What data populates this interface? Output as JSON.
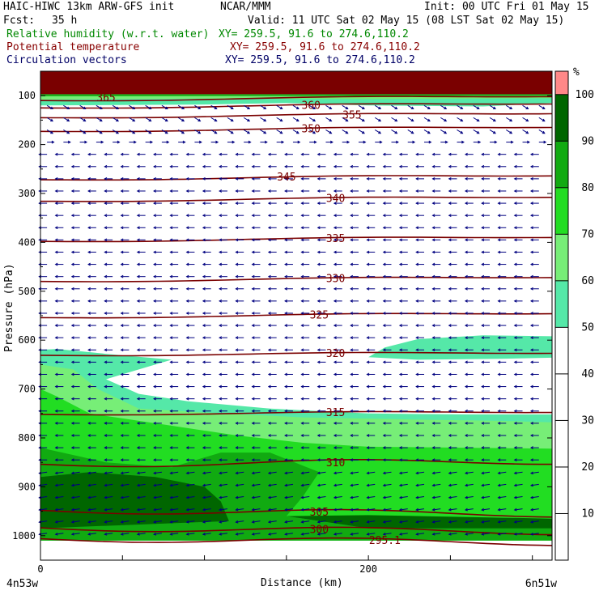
{
  "header": {
    "model": "HAIC-HIWC 13km ARW-GFS init",
    "org": "NCAR/MMM",
    "init": "Init: 00 UTC Fri 01 May 15",
    "fcst_label": "Fcst:",
    "fcst_value": "35 h",
    "valid": "Valid: 11 UTC Sat 02 May 15 (08 LST Sat 02 May 15)",
    "fields": [
      {
        "label": "Relative humidity (w.r.t. water)",
        "xy": "XY= 259.5, 91.6 to 274.6,110.2",
        "color": "#008800"
      },
      {
        "label": "Potential temperature",
        "xy": "XY= 259.5, 91.6 to 274.6,110.2",
        "color": "#880000"
      },
      {
        "label": "Circulation vectors",
        "xy": "XY= 259.5, 91.6 to 274.6,110.2",
        "color": "#000066"
      }
    ]
  },
  "colors": {
    "rh_fill": [
      "#ffffff",
      "#ffffff",
      "#ffffff",
      "#ffffff",
      "#ffffff",
      "#55e8a8",
      "#77ee77",
      "#22dd22",
      "#11aa11",
      "#006600",
      "#ff8888"
    ],
    "theta_line": "#7a0000",
    "vector": "#000080",
    "top_band": "#7a0000"
  },
  "chart_data": {
    "type": "cross-section",
    "ylabel": "Pressure (hPa)",
    "xlabel": "Distance (km)",
    "x_ticks": [
      0,
      200
    ],
    "x_range": [
      0,
      312
    ],
    "left_endpoint": "4n53w",
    "right_endpoint": "6n51w",
    "y_ticks": [
      100,
      200,
      300,
      400,
      500,
      600,
      700,
      800,
      900,
      1000
    ],
    "y_range": [
      50,
      1050
    ],
    "colorbar": {
      "unit": "%",
      "levels": [
        10,
        20,
        30,
        40,
        50,
        60,
        70,
        80,
        90,
        100
      ],
      "range": [
        0,
        105
      ]
    },
    "theta_contours": [
      {
        "label": "365",
        "x": 40,
        "p": 105
      },
      {
        "label": "360",
        "x": 165,
        "p": 120
      },
      {
        "label": "355",
        "x": 190,
        "p": 140
      },
      {
        "label": "350",
        "x": 165,
        "p": 168
      },
      {
        "label": "345",
        "x": 150,
        "p": 267
      },
      {
        "label": "340",
        "x": 180,
        "p": 311
      },
      {
        "label": "335",
        "x": 180,
        "p": 393
      },
      {
        "label": "330",
        "x": 180,
        "p": 475
      },
      {
        "label": "325",
        "x": 170,
        "p": 549
      },
      {
        "label": "320",
        "x": 180,
        "p": 628
      },
      {
        "label": "315",
        "x": 180,
        "p": 749
      },
      {
        "label": "310",
        "x": 180,
        "p": 851
      },
      {
        "label": "305",
        "x": 170,
        "p": 952
      },
      {
        "label": "300",
        "x": 170,
        "p": 988
      },
      {
        "label": "295.1",
        "x": 210,
        "p": 1010
      }
    ]
  }
}
